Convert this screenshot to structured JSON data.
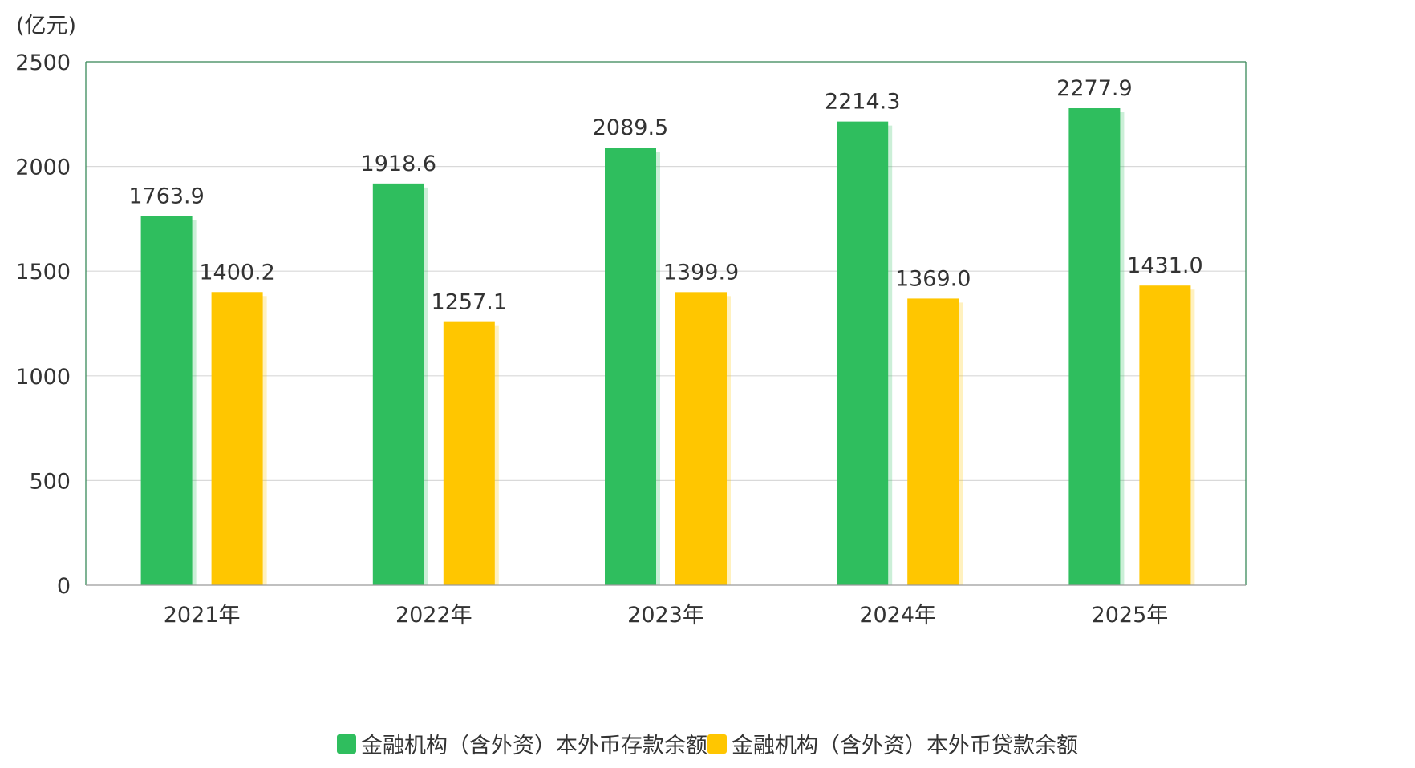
{
  "chart_data": {
    "type": "bar",
    "unit": "(亿元)",
    "categories": [
      "2021年",
      "2022年",
      "2023年",
      "2024年",
      "2025年"
    ],
    "series": [
      {
        "name": "金融机构（含外资）本外币存款余额",
        "color": "#2fbe5e",
        "values": [
          1763.9,
          1918.6,
          2089.5,
          2214.3,
          2277.9
        ],
        "labels": [
          "1763.9",
          "1918.6",
          "2089.5",
          "2214.3",
          "2277.9"
        ]
      },
      {
        "name": "金融机构（含外资）本外币贷款余额",
        "color": "#ffc600",
        "values": [
          1400.2,
          1257.1,
          1399.9,
          1369.0,
          1431.0
        ],
        "labels": [
          "1400.2",
          "1257.1",
          "1399.9",
          "1369.0",
          "1431.0"
        ]
      }
    ],
    "ylim": [
      0,
      2500
    ],
    "yticks": [
      "0",
      "500",
      "1000",
      "1500",
      "2000",
      "2500"
    ],
    "grid": true,
    "legend_position": "bottom"
  }
}
